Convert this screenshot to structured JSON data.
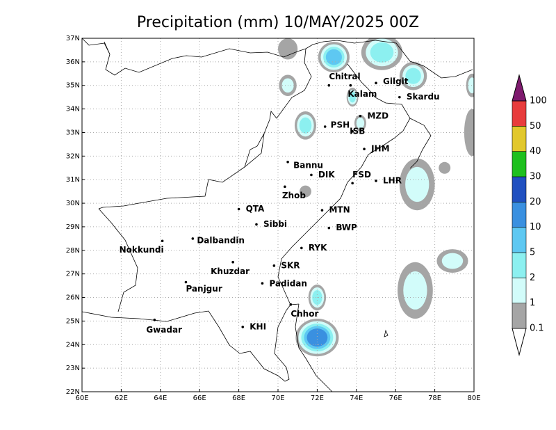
{
  "title": "Precipitation (mm) 10/MAY/2025 00Z",
  "map": {
    "xlim": [
      60,
      80
    ],
    "ylim": [
      22,
      37
    ],
    "xticks": [
      {
        "value": 60,
        "label": "60E"
      },
      {
        "value": 62,
        "label": "62E"
      },
      {
        "value": 64,
        "label": "64E"
      },
      {
        "value": 66,
        "label": "66E"
      },
      {
        "value": 68,
        "label": "68E"
      },
      {
        "value": 70,
        "label": "70E"
      },
      {
        "value": 72,
        "label": "72E"
      },
      {
        "value": 74,
        "label": "74E"
      },
      {
        "value": 76,
        "label": "76E"
      },
      {
        "value": 78,
        "label": "78E"
      },
      {
        "value": 80,
        "label": "80E"
      }
    ],
    "yticks": [
      {
        "value": 22,
        "label": "22N"
      },
      {
        "value": 23,
        "label": "23N"
      },
      {
        "value": 24,
        "label": "24N"
      },
      {
        "value": 25,
        "label": "25N"
      },
      {
        "value": 26,
        "label": "26N"
      },
      {
        "value": 27,
        "label": "27N"
      },
      {
        "value": 28,
        "label": "28N"
      },
      {
        "value": 29,
        "label": "29N"
      },
      {
        "value": 30,
        "label": "30N"
      },
      {
        "value": 31,
        "label": "31N"
      },
      {
        "value": 32,
        "label": "32N"
      },
      {
        "value": 33,
        "label": "33N"
      },
      {
        "value": 34,
        "label": "34N"
      },
      {
        "value": 35,
        "label": "35N"
      },
      {
        "value": 36,
        "label": "36N"
      },
      {
        "value": 37,
        "label": "37N"
      }
    ],
    "grid": true
  },
  "cities": [
    {
      "name": "Chitral",
      "lon": 72.6,
      "lat": 35.0
    },
    {
      "name": "Gilgit",
      "lon": 75.0,
      "lat": 35.1
    },
    {
      "name": "Kalam",
      "lon": 73.7,
      "lat": 35.0
    },
    {
      "name": "Skardu",
      "lon": 76.2,
      "lat": 34.5
    },
    {
      "name": "MZD",
      "lon": 74.2,
      "lat": 33.7
    },
    {
      "name": "PSH",
      "lon": 72.4,
      "lat": 33.25
    },
    {
      "name": "ISB",
      "lon": 73.8,
      "lat": 33.05
    },
    {
      "name": "JHM",
      "lon": 74.4,
      "lat": 32.3
    },
    {
      "name": "Bannu",
      "lon": 70.5,
      "lat": 31.75
    },
    {
      "name": "DIK",
      "lon": 71.7,
      "lat": 31.2
    },
    {
      "name": "FSD",
      "lon": 73.8,
      "lat": 30.85
    },
    {
      "name": "LHR",
      "lon": 75.0,
      "lat": 30.95
    },
    {
      "name": "Zhob",
      "lon": 70.35,
      "lat": 30.7
    },
    {
      "name": "QTA",
      "lon": 68.0,
      "lat": 29.75
    },
    {
      "name": "MTN",
      "lon": 72.25,
      "lat": 29.7
    },
    {
      "name": "Sibbi",
      "lon": 68.9,
      "lat": 29.1
    },
    {
      "name": "BWP",
      "lon": 72.6,
      "lat": 28.95
    },
    {
      "name": "Dalbandin",
      "lon": 65.65,
      "lat": 28.5
    },
    {
      "name": "Nokkundi",
      "lon": 64.1,
      "lat": 28.4
    },
    {
      "name": "RYK",
      "lon": 71.2,
      "lat": 28.1
    },
    {
      "name": "Khuzdar",
      "lon": 67.7,
      "lat": 27.5
    },
    {
      "name": "SKR",
      "lon": 69.8,
      "lat": 27.35
    },
    {
      "name": "Padidan",
      "lon": 69.2,
      "lat": 26.6
    },
    {
      "name": "Panjgur",
      "lon": 65.3,
      "lat": 26.65
    },
    {
      "name": "Chhor",
      "lon": 70.65,
      "lat": 25.7
    },
    {
      "name": "Gwadar",
      "lon": 63.7,
      "lat": 25.05
    },
    {
      "name": "KHI",
      "lon": 68.2,
      "lat": 24.75
    }
  ],
  "precip": [
    {
      "lon": 70.5,
      "lat": 36.55,
      "rx": 0.5,
      "ry": 0.45,
      "peak": 0.1
    },
    {
      "lon": 72.85,
      "lat": 36.2,
      "rx": 0.8,
      "ry": 0.65,
      "peak": 5
    },
    {
      "lon": 75.3,
      "lat": 36.4,
      "rx": 1.05,
      "ry": 0.75,
      "peak": 2
    },
    {
      "lon": 76.9,
      "lat": 35.4,
      "rx": 0.7,
      "ry": 0.6,
      "peak": 2
    },
    {
      "lon": 70.5,
      "lat": 35.0,
      "rx": 0.45,
      "ry": 0.45,
      "peak": 1
    },
    {
      "lon": 71.4,
      "lat": 33.3,
      "rx": 0.55,
      "ry": 0.6,
      "peak": 2
    },
    {
      "lon": 73.8,
      "lat": 34.5,
      "rx": 0.3,
      "ry": 0.4,
      "peak": 2
    },
    {
      "lon": 74.2,
      "lat": 33.4,
      "rx": 0.3,
      "ry": 0.35,
      "peak": 1
    },
    {
      "lon": 71.4,
      "lat": 30.5,
      "rx": 0.3,
      "ry": 0.25,
      "peak": 0.1
    },
    {
      "lon": 77.1,
      "lat": 30.8,
      "rx": 0.9,
      "ry": 1.1,
      "peak": 1
    },
    {
      "lon": 78.5,
      "lat": 31.5,
      "rx": 0.3,
      "ry": 0.25,
      "peak": 0.1
    },
    {
      "lon": 79.9,
      "lat": 33.0,
      "rx": 0.4,
      "ry": 1.0,
      "peak": 0.1
    },
    {
      "lon": 79.9,
      "lat": 35.0,
      "rx": 0.3,
      "ry": 0.5,
      "peak": 1
    },
    {
      "lon": 78.9,
      "lat": 27.55,
      "rx": 0.8,
      "ry": 0.5,
      "peak": 1
    },
    {
      "lon": 77.0,
      "lat": 26.3,
      "rx": 0.9,
      "ry": 1.2,
      "peak": 1
    },
    {
      "lon": 72.0,
      "lat": 26.0,
      "rx": 0.45,
      "ry": 0.55,
      "peak": 2
    },
    {
      "lon": 72.0,
      "lat": 24.3,
      "rx": 1.1,
      "ry": 0.8,
      "peak": 10
    }
  ],
  "colorbar": {
    "levels": [
      0.1,
      1,
      2,
      5,
      10,
      20,
      30,
      40,
      50,
      100
    ],
    "colors": [
      "#ffffff",
      "#a5a5a5",
      "#d2fcfa",
      "#8cf0f0",
      "#5ec8f2",
      "#3a90e0",
      "#2050c0",
      "#1ec01e",
      "#e2c82c",
      "#e83c3c",
      "#7e1a6e"
    ]
  }
}
